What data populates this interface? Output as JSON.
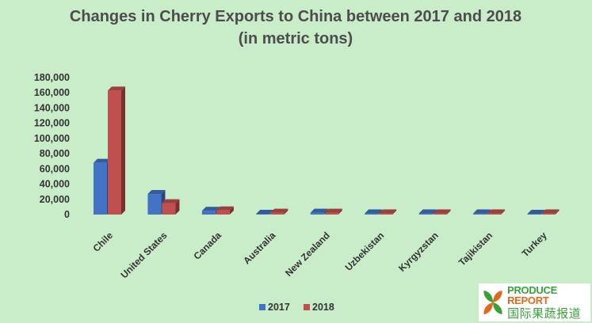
{
  "chart_data": {
    "type": "bar",
    "title": "Changes in Cherry Exports to China between 2017 and 2018",
    "subtitle": "(in metric tons)",
    "categories": [
      "Chile",
      "United States",
      "Canada",
      "Australia",
      "New Zealand",
      "Uzbekistan",
      "Kyrgyzstan",
      "Tajikistan",
      "Turkey"
    ],
    "series": [
      {
        "name": "2017",
        "color": "#4472c4",
        "values": [
          68000,
          27000,
          5000,
          1000,
          2500,
          1500,
          1500,
          1500,
          1000
        ]
      },
      {
        "name": "2018",
        "color": "#c0504d",
        "values": [
          163000,
          15000,
          5500,
          2500,
          2500,
          1500,
          1500,
          1500,
          1500
        ]
      }
    ],
    "ylim": [
      0,
      180000
    ],
    "yticks": [
      "0",
      "20,000",
      "40,000",
      "60,000",
      "80,000",
      "100,000",
      "120,000",
      "140,000",
      "160,000",
      "180,000"
    ],
    "grid": false,
    "legend_position": "bottom"
  },
  "logo": {
    "line1a": "PRODUCE ",
    "line1b": "REPORT",
    "line2": "国际果蔬报道"
  }
}
